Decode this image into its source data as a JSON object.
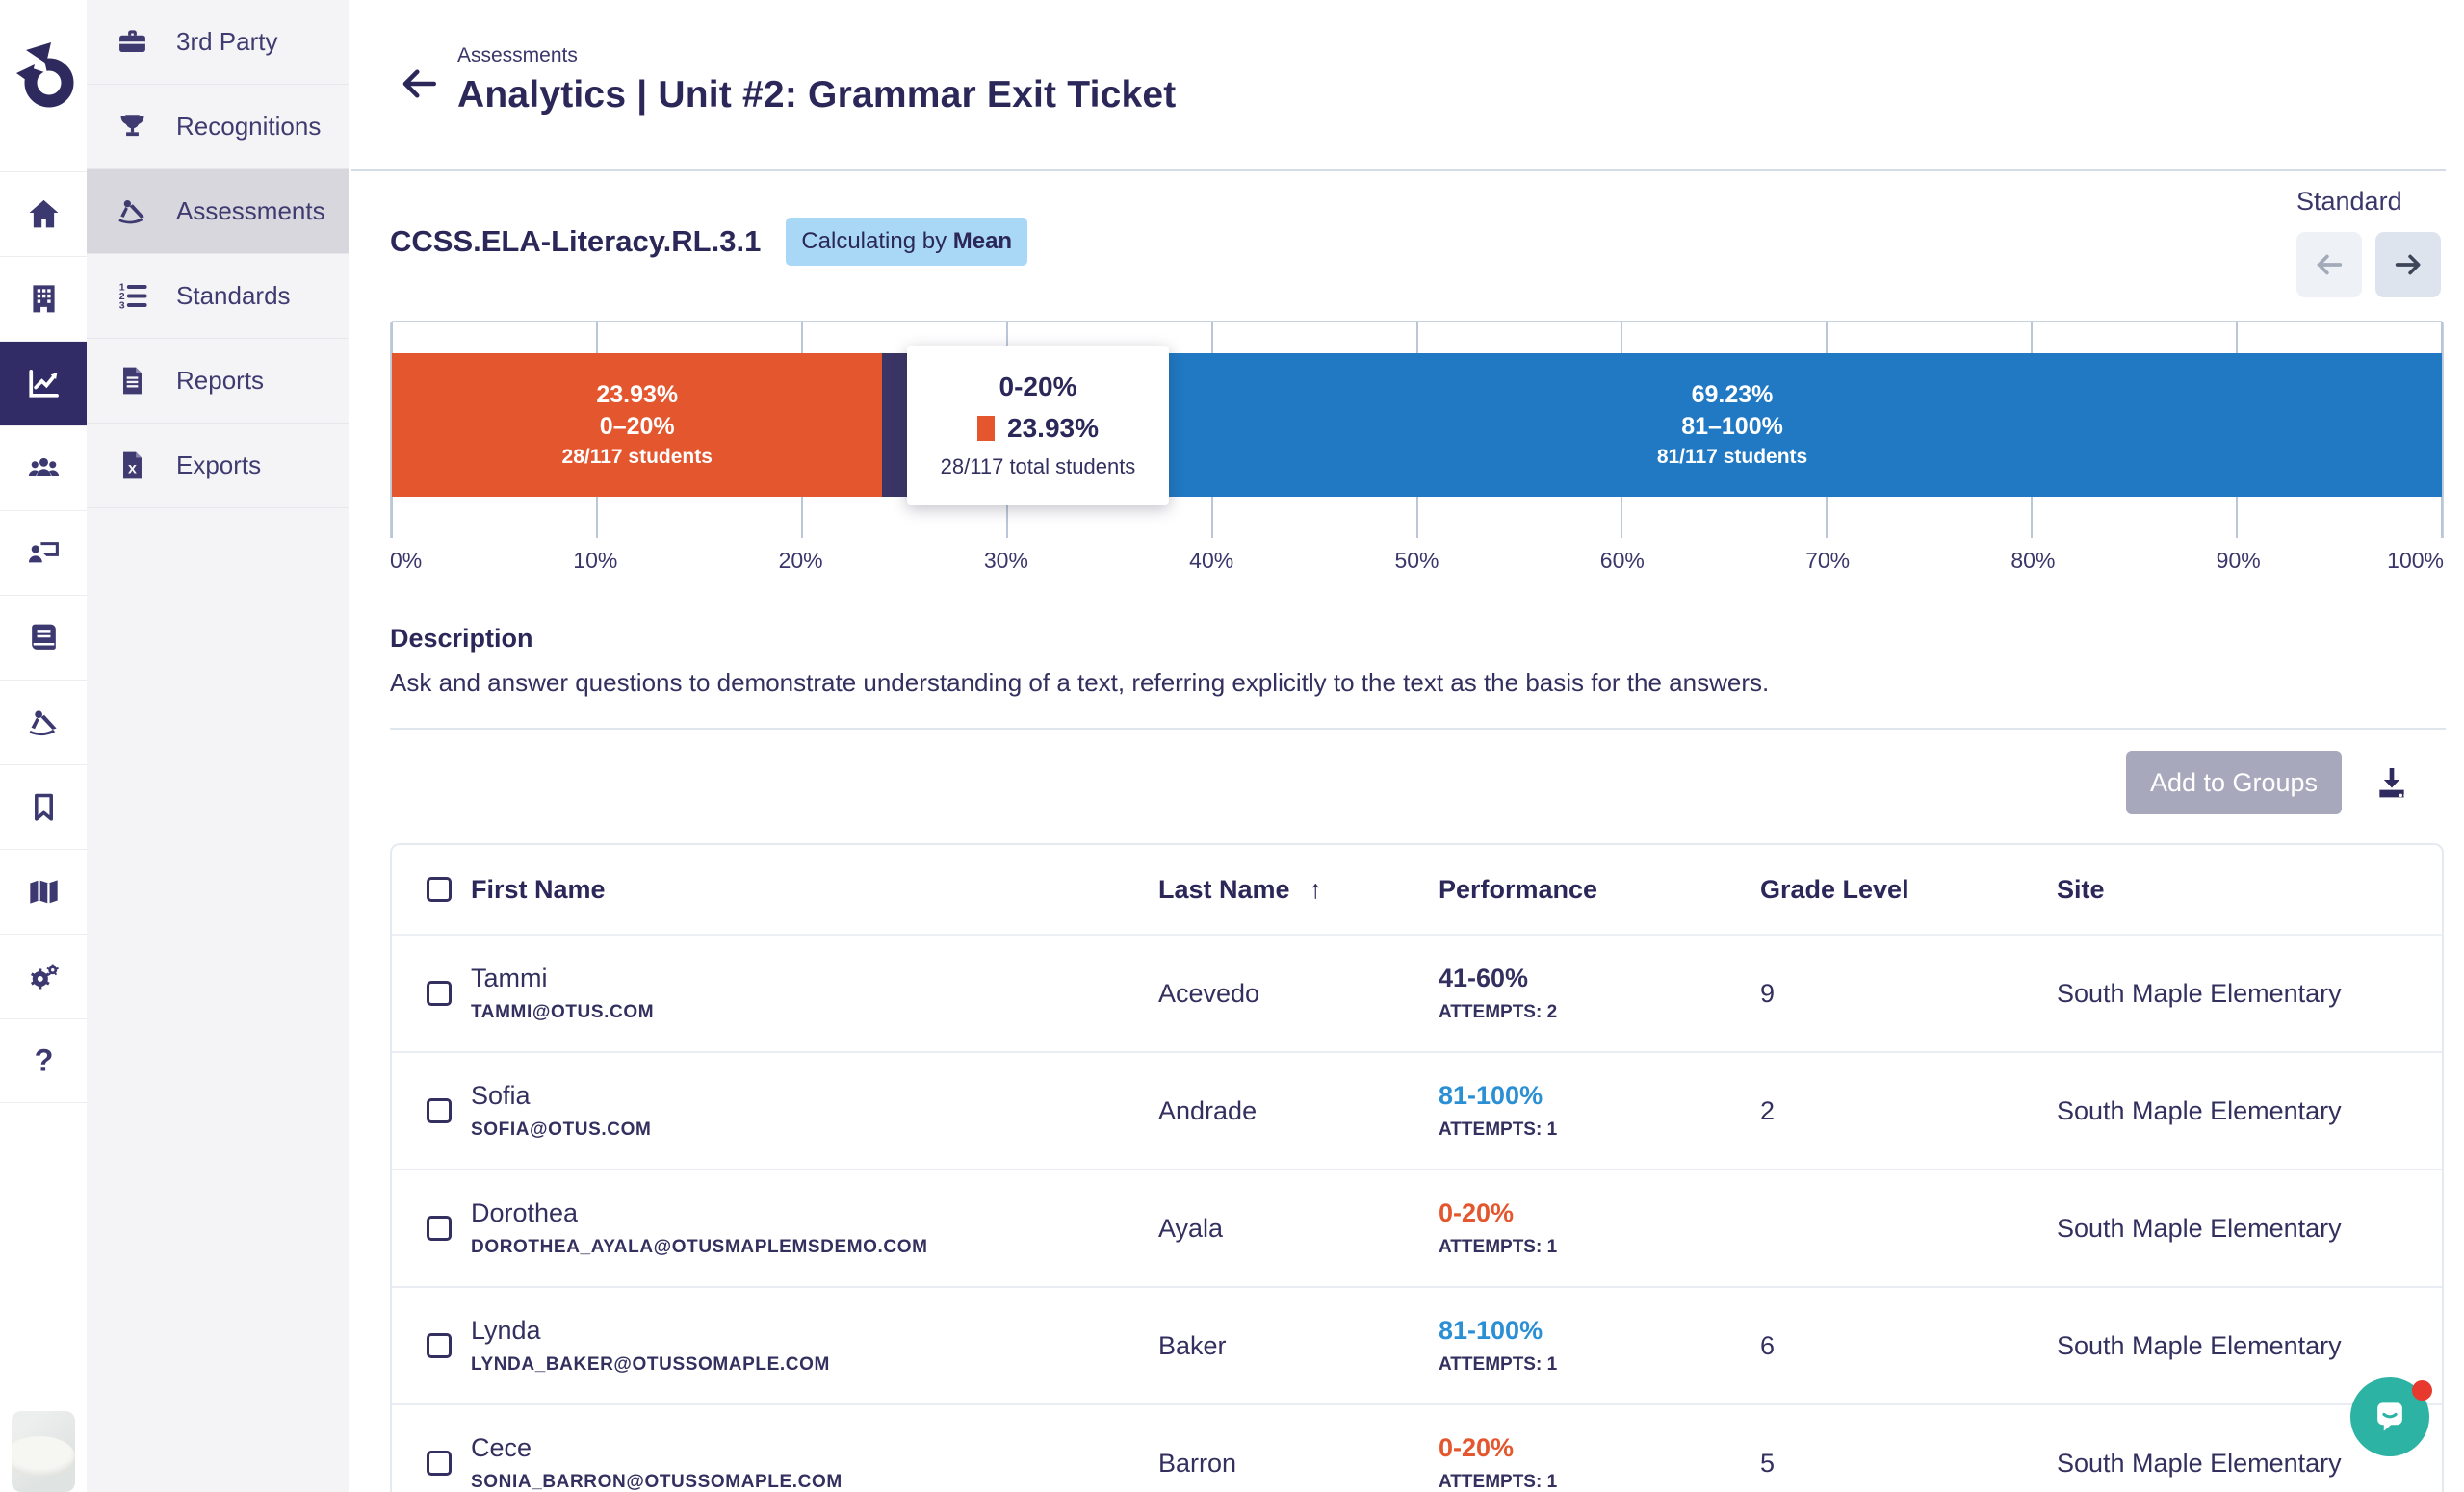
{
  "sidebar": {
    "rail_icons": [
      "home-icon",
      "building-icon",
      "analytics-chart-icon",
      "users-icon",
      "teacher-presentation-icon",
      "book-icon",
      "drafting-tools-icon",
      "bookmark-icon",
      "map-icon",
      "gears-icon",
      "help-question-icon"
    ],
    "active_rail": "analytics-chart-icon",
    "panel": {
      "items": [
        {
          "label": "3rd Party",
          "icon": "briefcase-icon"
        },
        {
          "label": "Recognitions",
          "icon": "trophy-icon"
        },
        {
          "label": "Assessments",
          "icon": "drafting-tools-icon",
          "active": true
        },
        {
          "label": "Standards",
          "icon": "numbered-list-icon"
        },
        {
          "label": "Reports",
          "icon": "document-icon"
        },
        {
          "label": "Exports",
          "icon": "file-export-icon"
        }
      ]
    }
  },
  "header": {
    "breadcrumb": "Assessments",
    "title": "Analytics | Unit #2: Grammar Exit Ticket",
    "back_icon": "arrow-left-icon"
  },
  "standard_bar": {
    "code": "CCSS.ELA-Literacy.RL.3.1",
    "calc_label": "Calculating by",
    "calc_mode": "Mean",
    "nav_label": "Standard"
  },
  "chart_data": {
    "type": "bar",
    "orientation": "horizontal_stacked",
    "title": "CCSS.ELA-Literacy.RL.3.1",
    "xlim": [
      0,
      100
    ],
    "grid": true,
    "x_ticks": [
      "0%",
      "10%",
      "20%",
      "30%",
      "40%",
      "50%",
      "60%",
      "70%",
      "80%",
      "90%",
      "100%"
    ],
    "total_students": 117,
    "segments": [
      {
        "range": "0–20%",
        "pct_label": "23.93%",
        "percent": 23.93,
        "students_label": "28/117 students",
        "color": "#e4572e"
      },
      {
        "range": "",
        "pct_label": "",
        "percent": 6.84,
        "students_label": "",
        "color": "#3b3566",
        "note": "middle segment partially hidden behind tooltip; label not visible"
      },
      {
        "range": "81–100%",
        "pct_label": "69.23%",
        "percent": 69.23,
        "students_label": "81/117 students",
        "color": "#2079c2"
      }
    ],
    "tooltip": {
      "title": "0-20%",
      "value": "23.93%",
      "subtitle": "28/117 total students",
      "swatch_color": "#e4572e"
    }
  },
  "description": {
    "heading": "Description",
    "body": "Ask and answer questions to demonstrate understanding of a text, referring explicitly to the text as the basis for the answers."
  },
  "actions": {
    "add_to_groups": "Add to Groups",
    "add_enabled": false,
    "download_icon": "download-icon"
  },
  "table": {
    "columns": {
      "first": "First Name",
      "last": "Last Name",
      "performance": "Performance",
      "grade": "Grade Level",
      "site": "Site"
    },
    "sorted_by": "Last Name",
    "sort_direction": "asc",
    "sort_icon": "↑",
    "rows": [
      {
        "first": "Tammi",
        "email": "TAMMI@OTUS.COM",
        "last": "Acevedo",
        "performance": "41-60%",
        "performance_color": "#33305f",
        "attempts": "ATTEMPTS: 2",
        "grade": "9",
        "site": "South Maple Elementary"
      },
      {
        "first": "Sofia",
        "email": "SOFIA@OTUS.COM",
        "last": "Andrade",
        "performance": "81-100%",
        "performance_color": "#2b8fd4",
        "attempts": "ATTEMPTS: 1",
        "grade": "2",
        "site": "South Maple Elementary"
      },
      {
        "first": "Dorothea",
        "email": "DOROTHEA_AYALA@OTUSMAPLEMSDEMO.COM",
        "last": "Ayala",
        "performance": "0-20%",
        "performance_color": "#e4572e",
        "attempts": "ATTEMPTS: 1",
        "grade": "",
        "site": "South Maple Elementary"
      },
      {
        "first": "Lynda",
        "email": "LYNDA_BAKER@OTUSSOMAPLE.COM",
        "last": "Baker",
        "performance": "81-100%",
        "performance_color": "#2b8fd4",
        "attempts": "ATTEMPTS: 1",
        "grade": "6",
        "site": "South Maple Elementary"
      },
      {
        "first": "Cece",
        "email": "SONIA_BARRON@OTUSSOMAPLE.COM",
        "last": "Barron",
        "performance": "0-20%",
        "performance_color": "#e4572e",
        "attempts": "ATTEMPTS: 1",
        "grade": "5",
        "site": "South Maple Elementary"
      }
    ]
  },
  "chat": {
    "icon": "chat-bubble-icon",
    "bubble_color": "#2db3a4",
    "unread_dot_color": "#e8392e"
  },
  "colors": {
    "navy": "#2b2759",
    "text": "#33305f",
    "orange": "#e4572e",
    "blue": "#2079c2",
    "badge_bg": "#a8d8f6",
    "disabled_button": "#a8a8bd",
    "teal": "#2db3a4",
    "active_rail_bg": "#312c66"
  }
}
